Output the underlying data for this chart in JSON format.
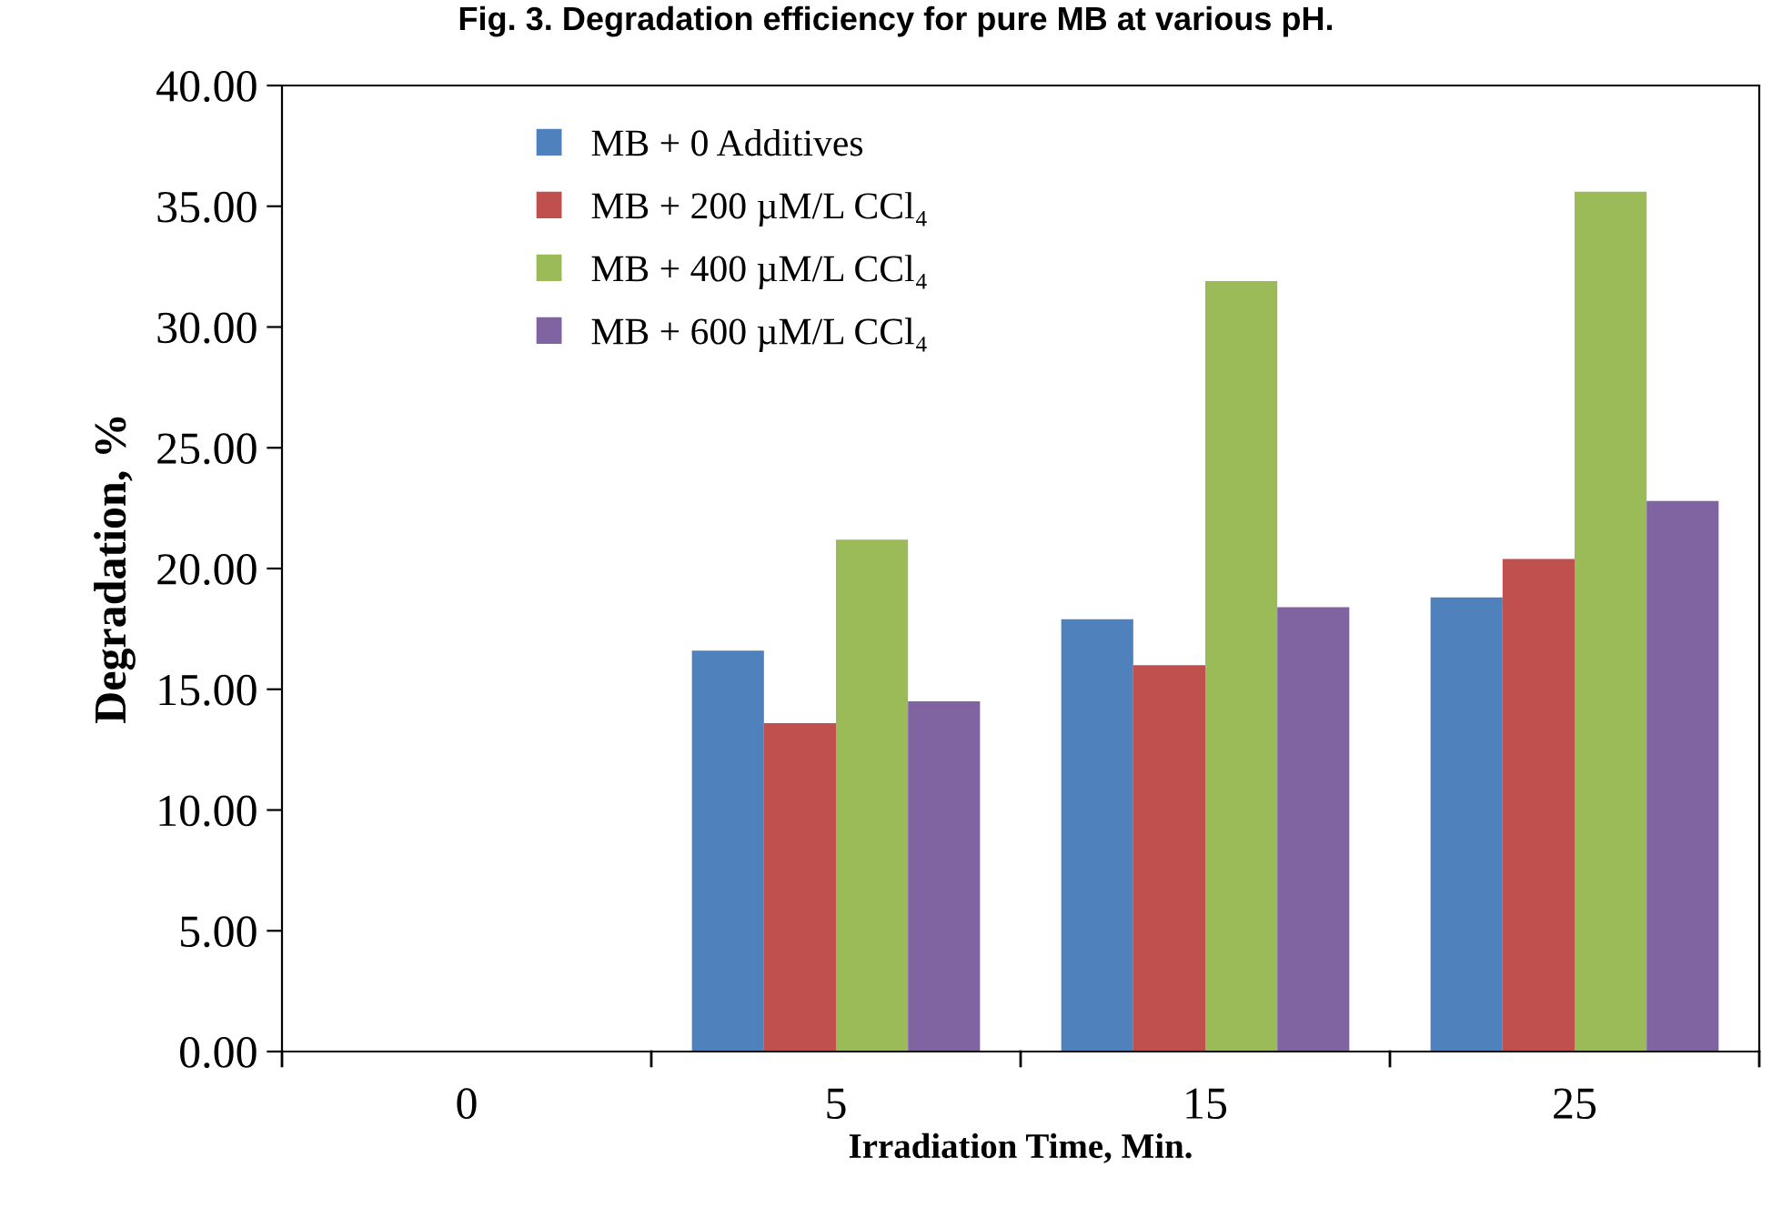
{
  "chart_data": {
    "type": "bar",
    "title": "Fig. 3. Degradation efficiency for pure MB at various pH.",
    "xlabel": "Irradiation Time, Min.",
    "ylabel": "Degradation, %",
    "categories": [
      "0",
      "5",
      "15",
      "25"
    ],
    "series": [
      {
        "name": "MB + 0 Additives",
        "color": "#4f81bd",
        "values": [
          0,
          16.6,
          17.9,
          18.8
        ]
      },
      {
        "name": "MB + 200 µM/L CCl₄",
        "color": "#c0504d",
        "values": [
          0,
          13.6,
          16.0,
          20.4
        ]
      },
      {
        "name": "MB + 400 µM/L CCl₄",
        "color": "#9bbb59",
        "values": [
          0,
          21.2,
          31.9,
          35.6
        ]
      },
      {
        "name": "MB + 600 µM/L CCl₄",
        "color": "#8064a2",
        "values": [
          0,
          14.5,
          18.4,
          22.8
        ]
      }
    ],
    "ylim": [
      0,
      40
    ],
    "yticks": [
      {
        "value": 0,
        "label": "0.00"
      },
      {
        "value": 5,
        "label": "5.00"
      },
      {
        "value": 10,
        "label": "10.00"
      },
      {
        "value": 15,
        "label": "15.00"
      },
      {
        "value": 20,
        "label": "20.00"
      },
      {
        "value": 25,
        "label": "25.00"
      },
      {
        "value": 30,
        "label": "30.00"
      },
      {
        "value": 35,
        "label": "35.00"
      },
      {
        "value": 40,
        "label": "40.00"
      }
    ],
    "grid": false,
    "legend": "top left"
  }
}
